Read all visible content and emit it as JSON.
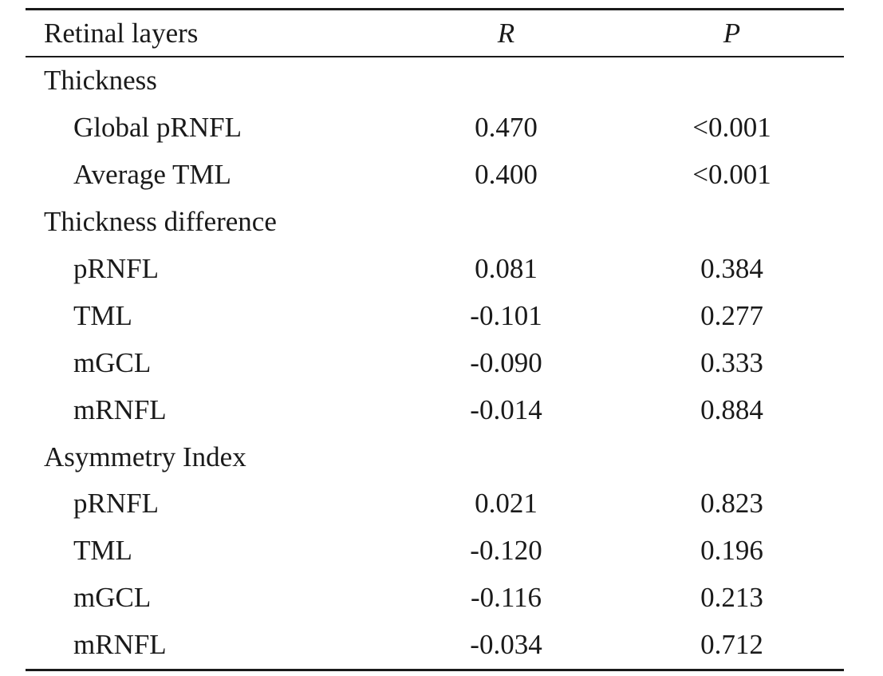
{
  "table": {
    "headers": {
      "layer": "Retinal layers",
      "r": "R",
      "p": "P"
    },
    "groups": [
      {
        "label": "Thickness",
        "rows": [
          {
            "layer": "Global pRNFL",
            "r": "0.470",
            "p": "<0.001"
          },
          {
            "layer": "Average TML",
            "r": "0.400",
            "p": "<0.001"
          }
        ]
      },
      {
        "label": "Thickness difference",
        "rows": [
          {
            "layer": "pRNFL",
            "r": "0.081",
            "p": "0.384"
          },
          {
            "layer": "TML",
            "r": "-0.101",
            "p": "0.277"
          },
          {
            "layer": "mGCL",
            "r": "-0.090",
            "p": "0.333"
          },
          {
            "layer": "mRNFL",
            "r": "-0.014",
            "p": "0.884"
          }
        ]
      },
      {
        "label": "Asymmetry Index",
        "rows": [
          {
            "layer": "pRNFL",
            "r": "0.021",
            "p": "0.823"
          },
          {
            "layer": "TML",
            "r": "-0.120",
            "p": "0.196"
          },
          {
            "layer": "mGCL",
            "r": "-0.116",
            "p": "0.213"
          },
          {
            "layer": "mRNFL",
            "r": "-0.034",
            "p": "0.712"
          }
        ]
      }
    ]
  }
}
